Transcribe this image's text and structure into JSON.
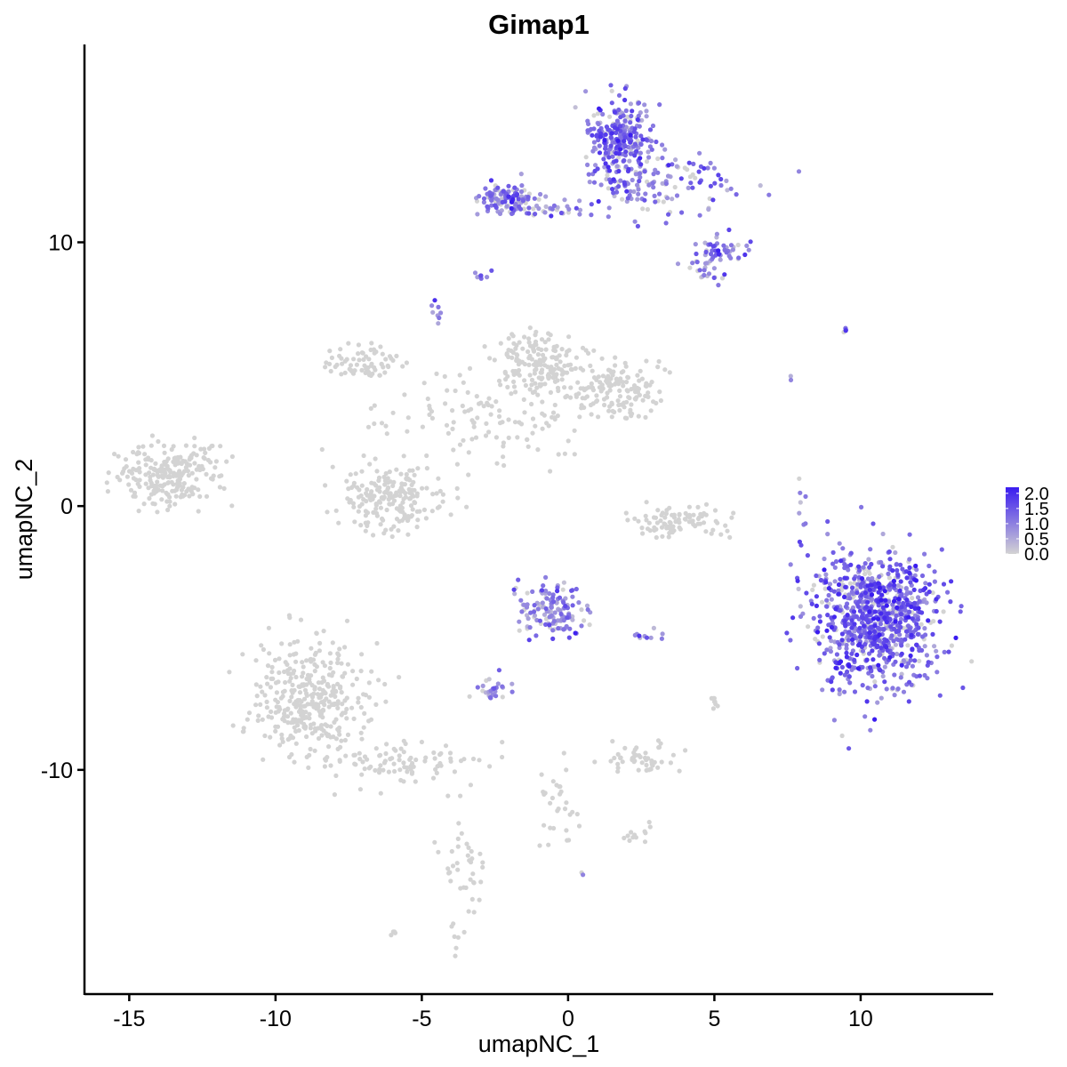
{
  "chart_data": {
    "type": "scatter",
    "title": "Gimap1",
    "xlabel": "umapNC_1",
    "ylabel": "umapNC_2",
    "xlim": [
      -16.5,
      14.5
    ],
    "ylim": [
      -18.5,
      17.5
    ],
    "xticks": [
      -15,
      -10,
      -5,
      0,
      5,
      10
    ],
    "xtick_labels": [
      "-15",
      "-10",
      "-5",
      "0",
      "5",
      "10"
    ],
    "yticks": [
      -10,
      0,
      10
    ],
    "ytick_labels": [
      "-10",
      "0",
      "10"
    ],
    "grid": false,
    "legend": {
      "position": "right",
      "type": "colorbar",
      "min": 0.0,
      "max": 2.2,
      "tick_values": [
        0.0,
        0.5,
        1.0,
        1.5,
        2.0
      ],
      "tick_labels": [
        "0.0",
        "0.5",
        "1.0",
        "1.5",
        "2.0"
      ],
      "low_color": "#D3D3D3",
      "high_color": "#3A1CF0"
    },
    "clusters": [
      {
        "center": [
          10.5,
          -4.3
        ],
        "spread": [
          1.1,
          1.3
        ],
        "n": 900,
        "expr": 1.3
      },
      {
        "center": [
          1.8,
          14.0
        ],
        "spread": [
          0.6,
          0.7
        ],
        "n": 260,
        "expr": 1.2
      },
      {
        "center": [
          3.3,
          12.2
        ],
        "spread": [
          1.2,
          0.6
        ],
        "n": 130,
        "expr": 0.9
      },
      {
        "center": [
          -2.2,
          11.6
        ],
        "spread": [
          0.5,
          0.3
        ],
        "n": 110,
        "expr": 1.2
      },
      {
        "center": [
          -0.3,
          11.3
        ],
        "spread": [
          1.0,
          0.2
        ],
        "n": 40,
        "expr": 1.0
      },
      {
        "center": [
          5.3,
          9.7
        ],
        "spread": [
          0.5,
          0.3
        ],
        "n": 50,
        "expr": 1.1
      },
      {
        "center": [
          4.6,
          9.0
        ],
        "spread": [
          0.3,
          0.3
        ],
        "n": 20,
        "expr": 0.9
      },
      {
        "center": [
          -0.6,
          -3.9
        ],
        "spread": [
          0.55,
          0.5
        ],
        "n": 140,
        "expr": 1.0
      },
      {
        "center": [
          -2.6,
          -6.9
        ],
        "spread": [
          0.3,
          0.25
        ],
        "n": 25,
        "expr": 1.0
      },
      {
        "center": [
          -8.8,
          -7.3
        ],
        "spread": [
          1.0,
          1.1
        ],
        "n": 360,
        "expr": 0.0
      },
      {
        "center": [
          -5.5,
          -9.8
        ],
        "spread": [
          1.3,
          0.4
        ],
        "n": 90,
        "expr": 0.0
      },
      {
        "center": [
          -13.7,
          1.1
        ],
        "spread": [
          0.8,
          0.6
        ],
        "n": 220,
        "expr": 0.0
      },
      {
        "center": [
          -6.0,
          0.3
        ],
        "spread": [
          0.9,
          0.6
        ],
        "n": 200,
        "expr": 0.0
      },
      {
        "center": [
          -7.0,
          5.4
        ],
        "spread": [
          0.6,
          0.4
        ],
        "n": 70,
        "expr": 0.0
      },
      {
        "center": [
          -1.0,
          5.4
        ],
        "spread": [
          0.7,
          0.6
        ],
        "n": 180,
        "expr": 0.0
      },
      {
        "center": [
          1.7,
          4.4
        ],
        "spread": [
          0.7,
          0.5
        ],
        "n": 140,
        "expr": 0.0
      },
      {
        "center": [
          -3.0,
          3.3
        ],
        "spread": [
          1.8,
          1.0
        ],
        "n": 120,
        "expr": 0.0
      },
      {
        "center": [
          3.8,
          -0.6
        ],
        "spread": [
          0.9,
          0.3
        ],
        "n": 90,
        "expr": 0.0
      },
      {
        "center": [
          2.5,
          -9.6
        ],
        "spread": [
          0.6,
          0.25
        ],
        "n": 50,
        "expr": 0.0
      },
      {
        "center": [
          -3.5,
          -14.0
        ],
        "spread": [
          0.4,
          1.2
        ],
        "n": 45,
        "expr": 0.0
      },
      {
        "center": [
          -0.4,
          -11.5
        ],
        "spread": [
          0.3,
          0.9
        ],
        "n": 30,
        "expr": 0.0
      },
      {
        "center": [
          2.3,
          -12.4
        ],
        "spread": [
          0.3,
          0.2
        ],
        "n": 12,
        "expr": 0.0
      },
      {
        "center": [
          -12.3,
          1.8
        ],
        "spread": [
          0.4,
          0.6
        ],
        "n": 15,
        "expr": 0.0
      },
      {
        "center": [
          -6.0,
          -16.2
        ],
        "spread": [
          0.1,
          0.1
        ],
        "n": 5,
        "expr": 0.0
      },
      {
        "center": [
          -4.5,
          7.4
        ],
        "spread": [
          0.1,
          0.3
        ],
        "n": 8,
        "expr": 0.8
      },
      {
        "center": [
          -2.8,
          8.8
        ],
        "spread": [
          0.2,
          0.2
        ],
        "n": 8,
        "expr": 1.0
      },
      {
        "center": [
          2.8,
          -4.9
        ],
        "spread": [
          0.4,
          0.1
        ],
        "n": 10,
        "expr": 0.8
      },
      {
        "center": [
          8.0,
          -0.2
        ],
        "spread": [
          0.2,
          0.5
        ],
        "n": 8,
        "expr": 1.0
      },
      {
        "center": [
          9.5,
          6.7
        ],
        "spread": [
          0.1,
          0.05
        ],
        "n": 4,
        "expr": 1.2
      },
      {
        "center": [
          7.6,
          4.8
        ],
        "spread": [
          0.1,
          0.1
        ],
        "n": 2,
        "expr": 1.0
      },
      {
        "center": [
          5.0,
          -7.4
        ],
        "spread": [
          0.15,
          0.2
        ],
        "n": 8,
        "expr": 0.0
      },
      {
        "center": [
          0.5,
          -13.9
        ],
        "spread": [
          0.05,
          0.05
        ],
        "n": 2,
        "expr": 1.0
      }
    ]
  }
}
